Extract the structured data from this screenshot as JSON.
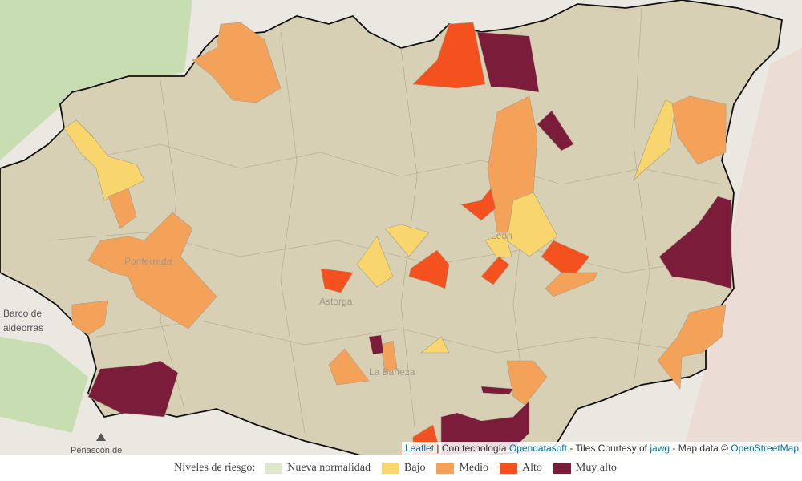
{
  "map": {
    "place_labels": [
      "Barco de",
      "aldeorras",
      "Ponferrada",
      "Astorga",
      "La Bañeza",
      "León",
      "Peñascón de"
    ],
    "attribution": {
      "leaflet": "Leaflet",
      "tech": "| Con tecnología",
      "opendatasoft": "Opendatasoft",
      "tiles": "- Tiles Courtesy of",
      "jawg": "jawg",
      "mapdata": "- Map data ©",
      "osm": "OpenStreetMap"
    }
  },
  "legend": {
    "title": "Niveles de riesgo:",
    "items": [
      {
        "label": "Nueva normalidad",
        "color": "#dde8cc"
      },
      {
        "label": "Bajo",
        "color": "#f9d56e"
      },
      {
        "label": "Medio",
        "color": "#f4a259"
      },
      {
        "label": "Alto",
        "color": "#f4511e"
      },
      {
        "label": "Muy alto",
        "color": "#7b1c3b"
      }
    ]
  }
}
